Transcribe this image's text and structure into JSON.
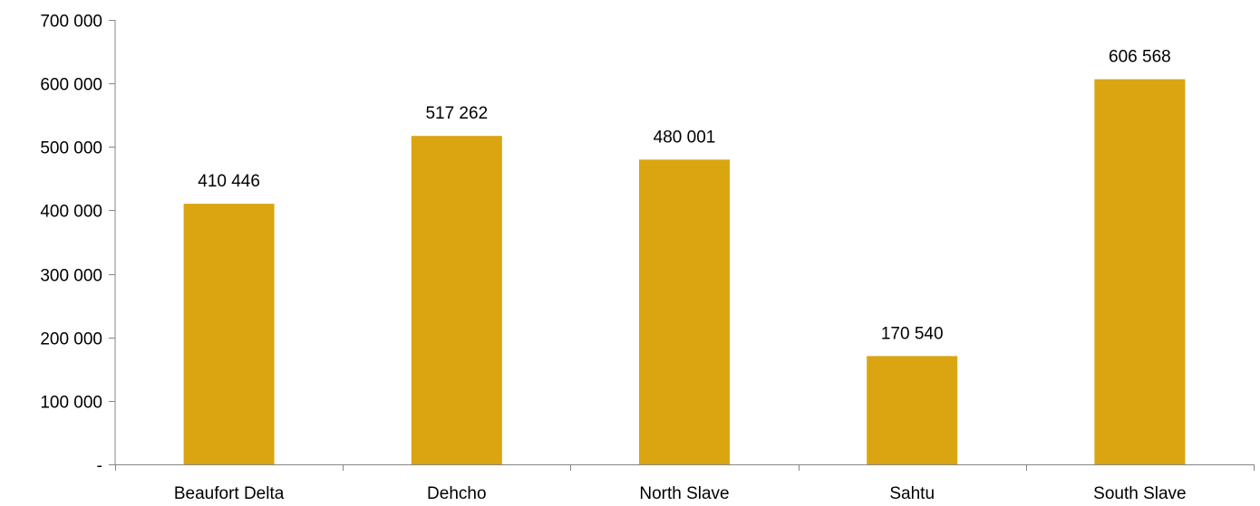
{
  "chart_data": {
    "type": "bar",
    "categories": [
      "Beaufort Delta",
      "Dehcho",
      "North Slave",
      "Sahtu",
      "South Slave"
    ],
    "values": [
      410446,
      517262,
      480001,
      170540,
      606568
    ],
    "data_labels": [
      "410 446",
      "517 262",
      "480 001",
      "170 540",
      "606 568"
    ],
    "yticks": [
      0,
      100000,
      200000,
      300000,
      400000,
      500000,
      600000,
      700000
    ],
    "ytick_labels": [
      "-",
      "100 000",
      "200 000",
      "300 000",
      "400 000",
      "500 000",
      "600 000",
      "700 000"
    ],
    "ylim": [
      0,
      700000
    ],
    "grid": false,
    "legend": false,
    "bar_color": "#DAA511",
    "axis_color": "#868686"
  }
}
